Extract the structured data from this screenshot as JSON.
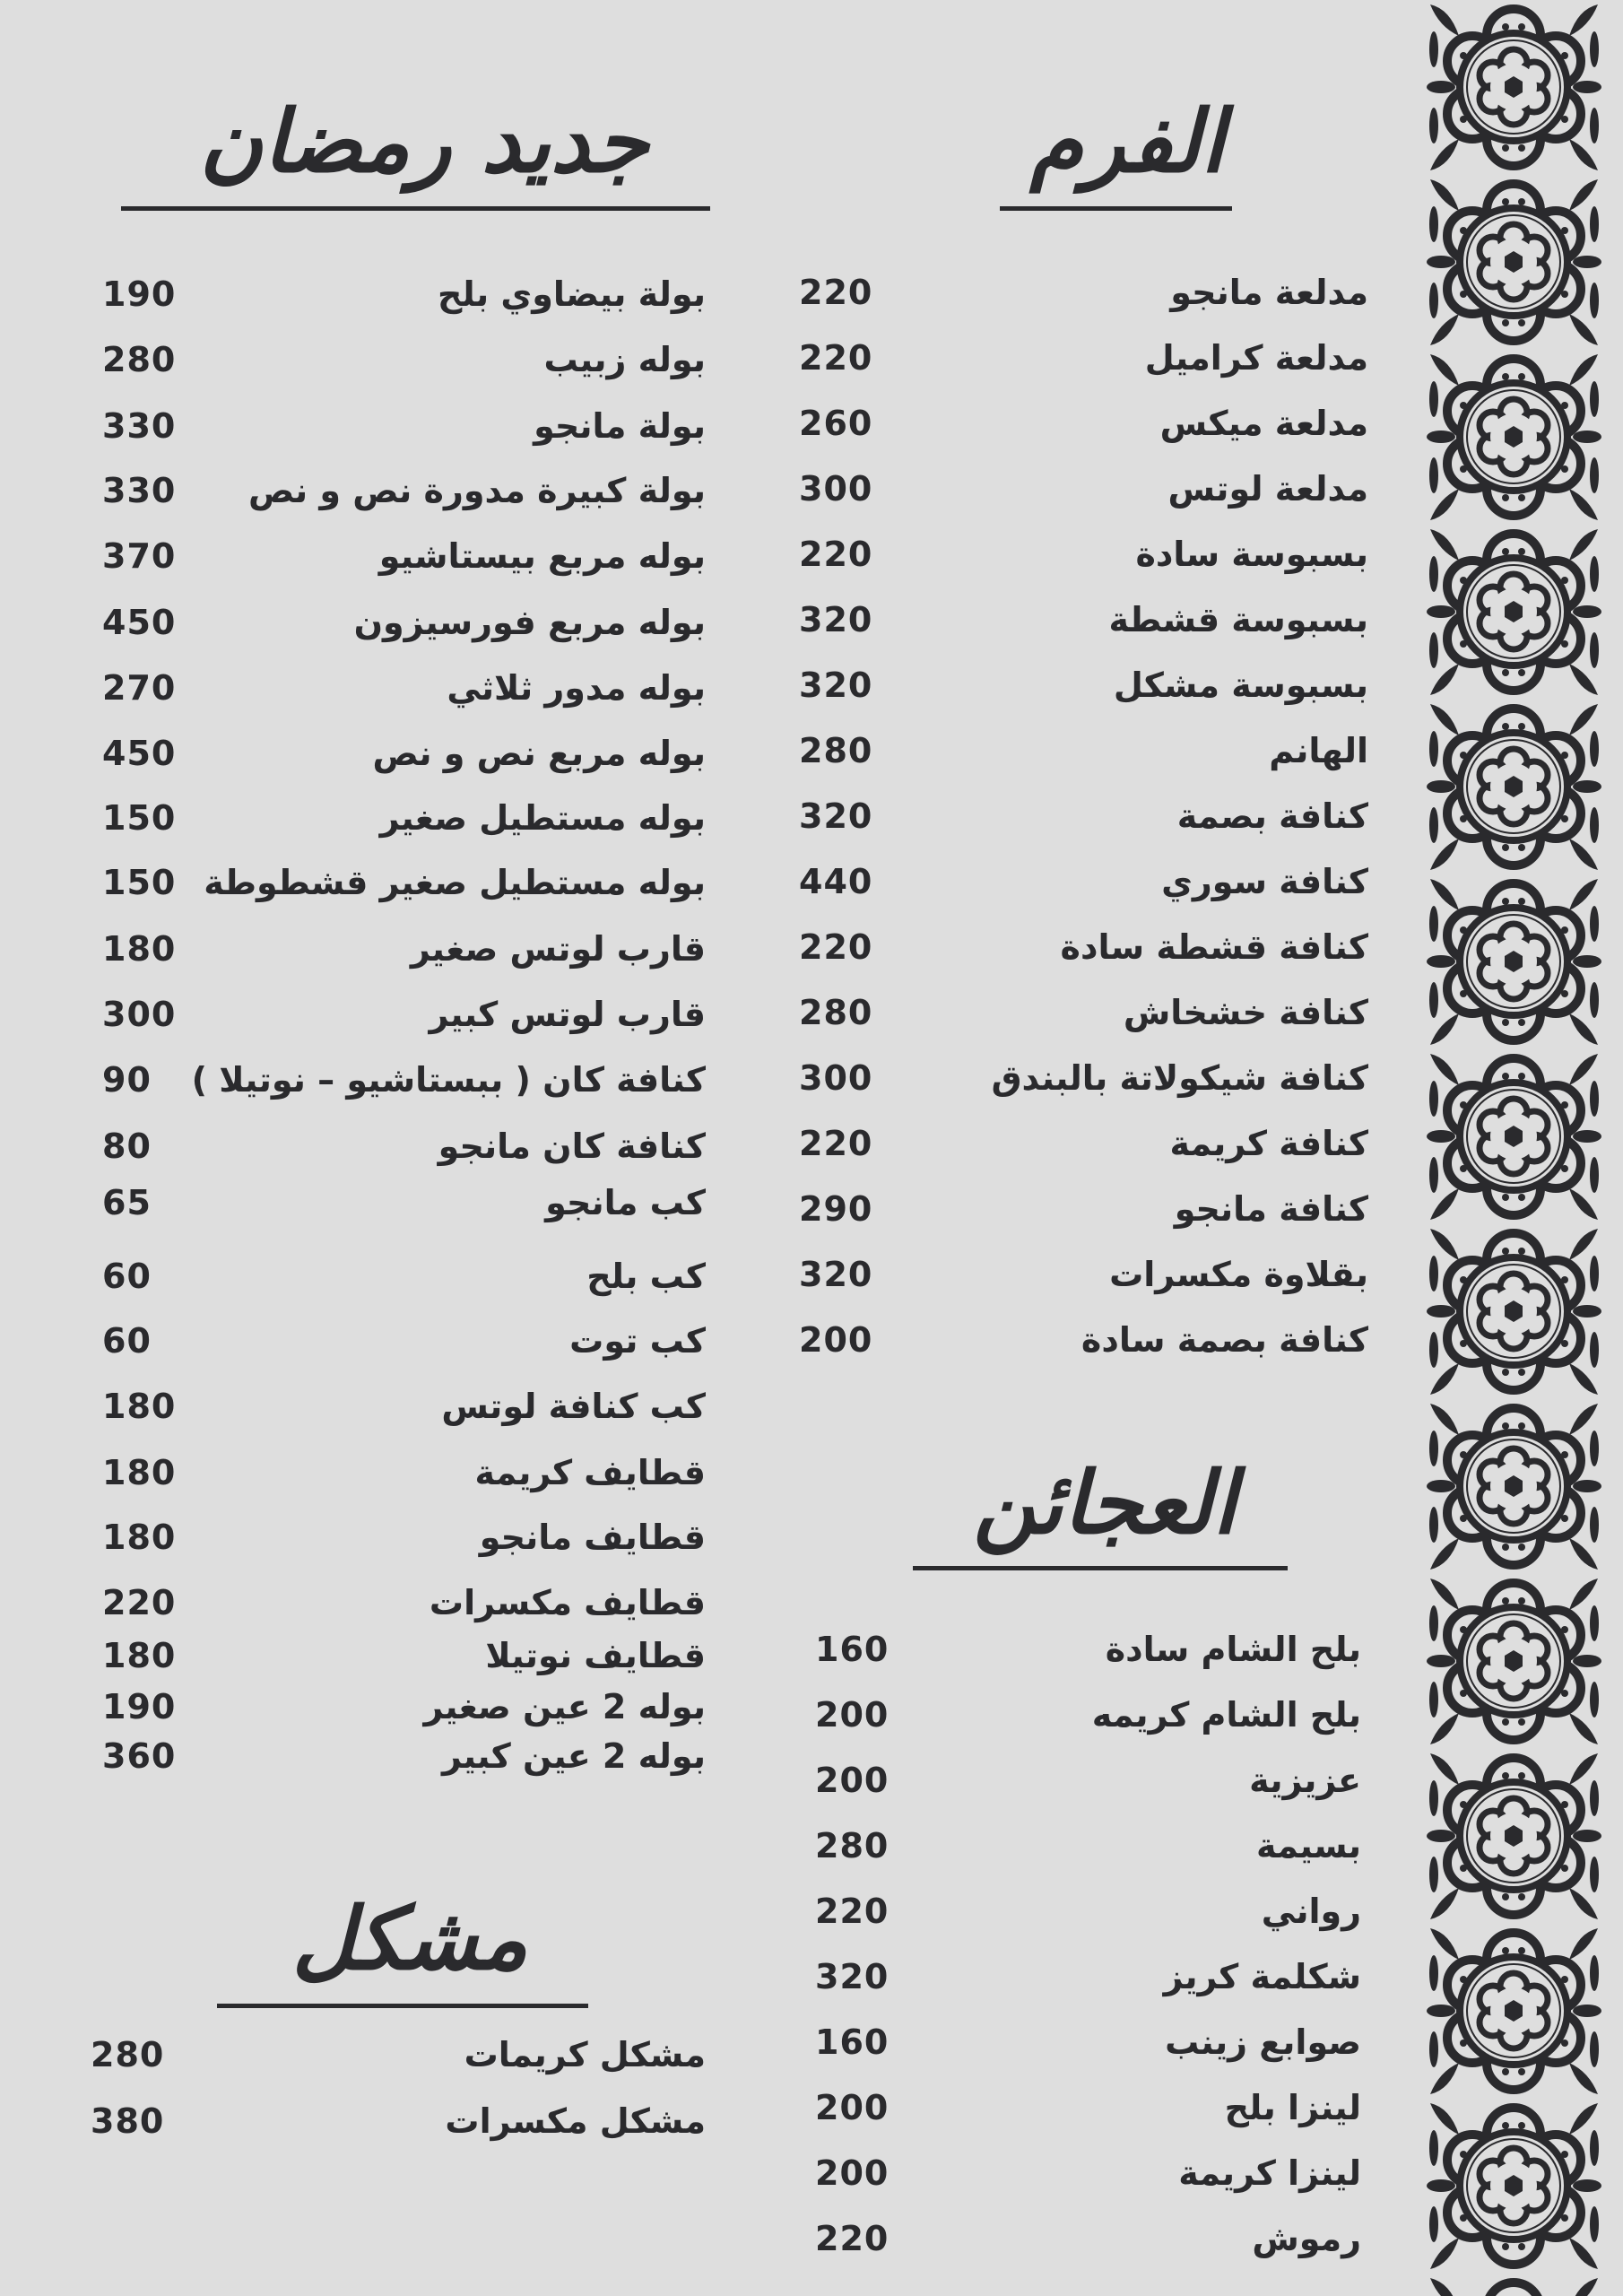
{
  "colors": {
    "background": "#dedede",
    "text": "#2a2a2d",
    "ornament": "#2a2a2d"
  },
  "ornament": {
    "icon": "floral-tile-border-icon"
  },
  "sections": {
    "forn": {
      "title": "الفرم",
      "items": [
        {
          "name": "مدلعة مانجو",
          "price": "220"
        },
        {
          "name": "مدلعة كراميل",
          "price": "220"
        },
        {
          "name": "مدلعة ميكس",
          "price": "260"
        },
        {
          "name": "مدلعة لوتس",
          "price": "300"
        },
        {
          "name": "بسبوسة سادة",
          "price": "220"
        },
        {
          "name": "بسبوسة قشطة",
          "price": "320"
        },
        {
          "name": "بسبوسة مشكل",
          "price": "320"
        },
        {
          "name": "الهانم",
          "price": "280"
        },
        {
          "name": "كنافة بصمة",
          "price": "320"
        },
        {
          "name": "كنافة سوري",
          "price": "440"
        },
        {
          "name": "كنافة قشطة سادة",
          "price": "220"
        },
        {
          "name": "كنافة خشخاش",
          "price": "280"
        },
        {
          "name": "كنافة شيكولاتة بالبندق",
          "price": "300"
        },
        {
          "name": "كنافة كريمة",
          "price": "220"
        },
        {
          "name": "كنافة مانجو",
          "price": "290"
        },
        {
          "name": "بقلاوة مكسرات",
          "price": "320"
        },
        {
          "name": "كنافة بصمة سادة",
          "price": "200"
        }
      ]
    },
    "ajaen": {
      "title": "العجائن",
      "items": [
        {
          "name": "بلح الشام سادة",
          "price": "160"
        },
        {
          "name": "بلح الشام كريمه",
          "price": "200"
        },
        {
          "name": "عزيزية",
          "price": "200"
        },
        {
          "name": "بسيمة",
          "price": "280"
        },
        {
          "name": "رواني",
          "price": "220"
        },
        {
          "name": "شكلمة كريز",
          "price": "320"
        },
        {
          "name": "صوابع زينب",
          "price": "160"
        },
        {
          "name": "لينزا بلح",
          "price": "200"
        },
        {
          "name": "لينزا كريمة",
          "price": "200"
        },
        {
          "name": "رموش",
          "price": "220"
        }
      ]
    },
    "ramadan": {
      "title": "جديد رمضان",
      "items": [
        {
          "name": "بولة بيضاوي بلح",
          "price": "190"
        },
        {
          "name": "بوله زبيب",
          "price": "280"
        },
        {
          "name": "بولة مانجو",
          "price": "330"
        },
        {
          "name": "بولة كبيرة مدورة نص و نص",
          "price": "330"
        },
        {
          "name": "بوله مربع بيستاشيو",
          "price": "370"
        },
        {
          "name": "بوله مربع فورسيزون",
          "price": "450"
        },
        {
          "name": "بوله مدور ثلاثي",
          "price": "270"
        },
        {
          "name": "بوله مربع نص و نص",
          "price": "450"
        },
        {
          "name": "بوله مستطيل صغير",
          "price": "150"
        },
        {
          "name": "بوله مستطيل صغير قشطوطة",
          "price": "150"
        },
        {
          "name": "قارب لوتس صغير",
          "price": "180"
        },
        {
          "name": "قارب لوتس كبير",
          "price": "300"
        },
        {
          "name": "كنافة كان ( ببستاشيو – نوتيلا )",
          "price": "90"
        },
        {
          "name": "كنافة كان مانجو",
          "price": "80"
        },
        {
          "name": "كب مانجو",
          "price": "65"
        },
        {
          "name": "كب بلح",
          "price": "60"
        },
        {
          "name": "كب توت",
          "price": "60"
        },
        {
          "name": "كب كنافة لوتس",
          "price": "180"
        },
        {
          "name": "قطايف كريمة",
          "price": "180"
        },
        {
          "name": "قطايف مانجو",
          "price": "180"
        },
        {
          "name": "قطايف مكسرات",
          "price": "220"
        },
        {
          "name": "قطايف نوتيلا",
          "price": "180"
        },
        {
          "name": "بوله 2 عين صغير",
          "price": "190"
        },
        {
          "name": "بوله 2 عين كبير",
          "price": "360"
        }
      ]
    },
    "mixed": {
      "title": "مشكل",
      "items": [
        {
          "name": "مشكل كريمات",
          "price": "280"
        },
        {
          "name": "مشكل مكسرات",
          "price": "380"
        }
      ]
    }
  }
}
